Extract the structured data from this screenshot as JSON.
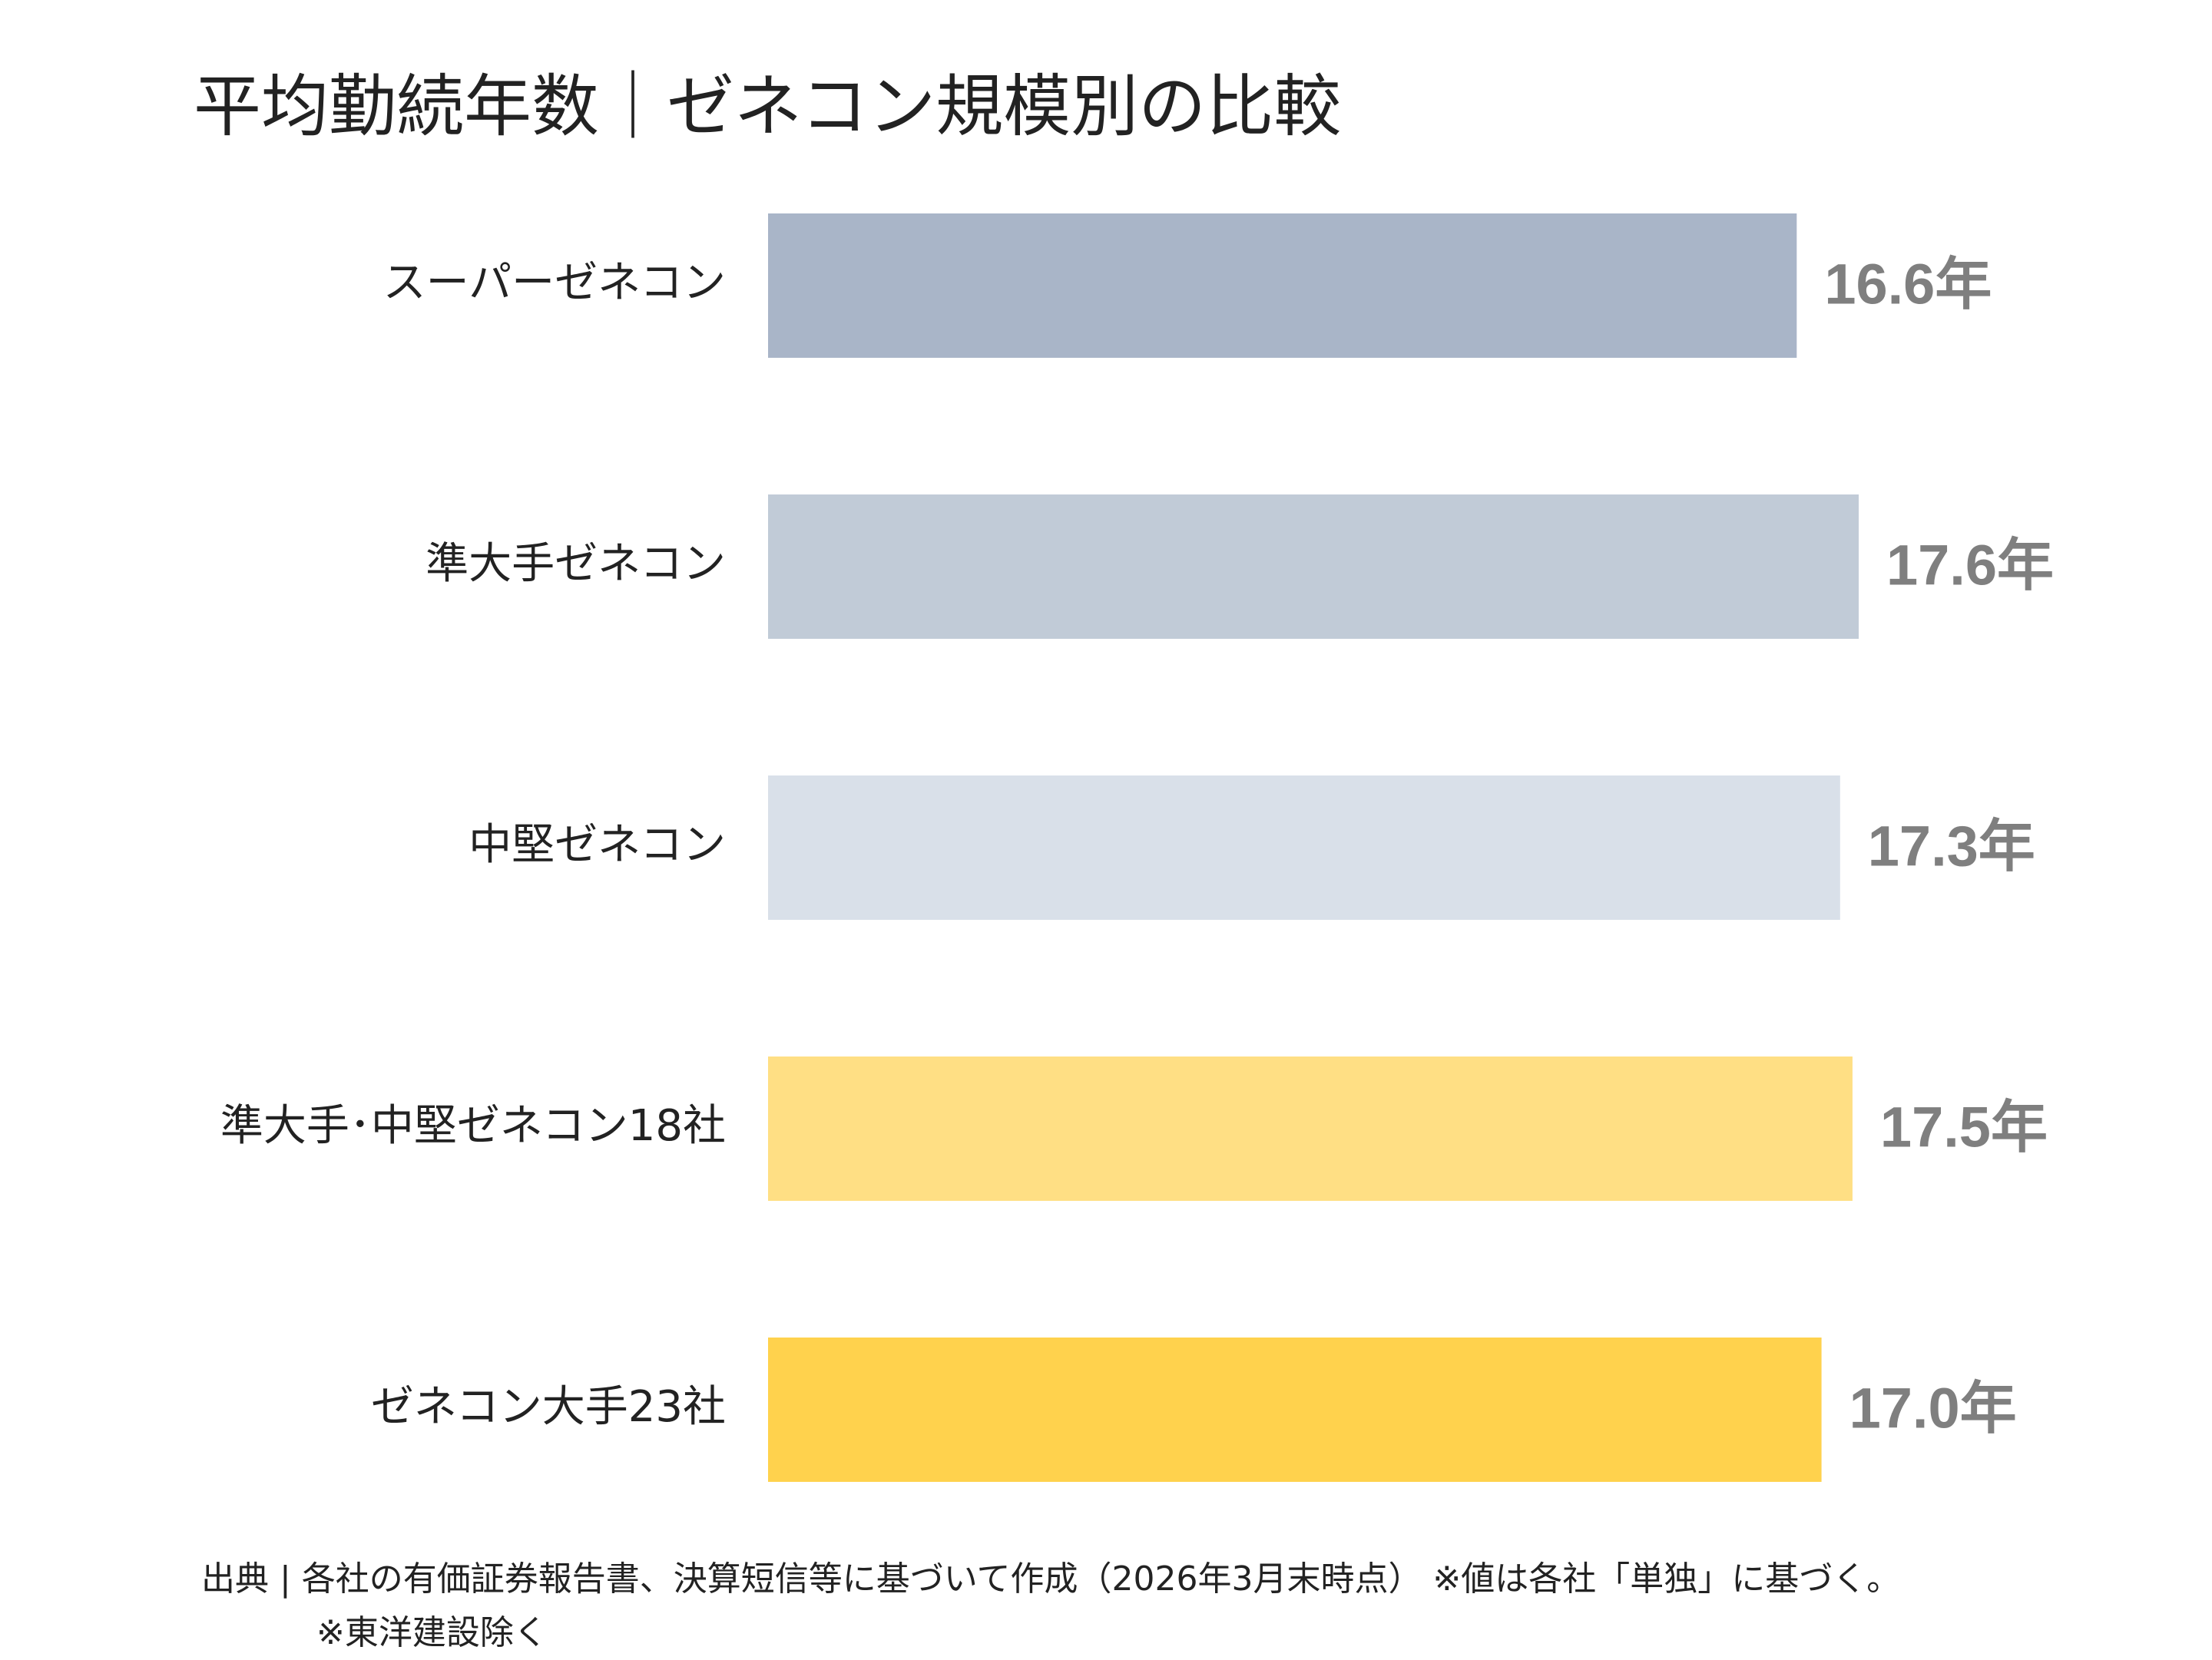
{
  "chart_data": {
    "type": "bar",
    "orientation": "horizontal",
    "title": "平均勤続年数｜ゼネコン規模別の比較",
    "categories": [
      "スーパーゼネコン",
      "準大手ゼネコン",
      "中堅ゼネコン",
      "準大手･中堅ゼネコン18社",
      "ゼネコン大手23社"
    ],
    "values": [
      16.6,
      17.6,
      17.3,
      17.5,
      17.0
    ],
    "value_labels": [
      "16.6年",
      "17.6年",
      "17.3年",
      "17.5年",
      "17.0年"
    ],
    "unit": "年",
    "colors": [
      "#a9b5c8",
      "#c1cbd7",
      "#d9e0e9",
      "#ffdf84",
      "#ffd24d"
    ],
    "xlim": [
      0,
      17.6
    ],
    "grid": false,
    "legend": "none"
  },
  "footer": {
    "source": "出典 | 各社の有価証券報告書、決算短信等に基づいて作成（2026年3月末時点） ※値は各社「単独」に基づく。",
    "note": "※東洋建設除く"
  }
}
